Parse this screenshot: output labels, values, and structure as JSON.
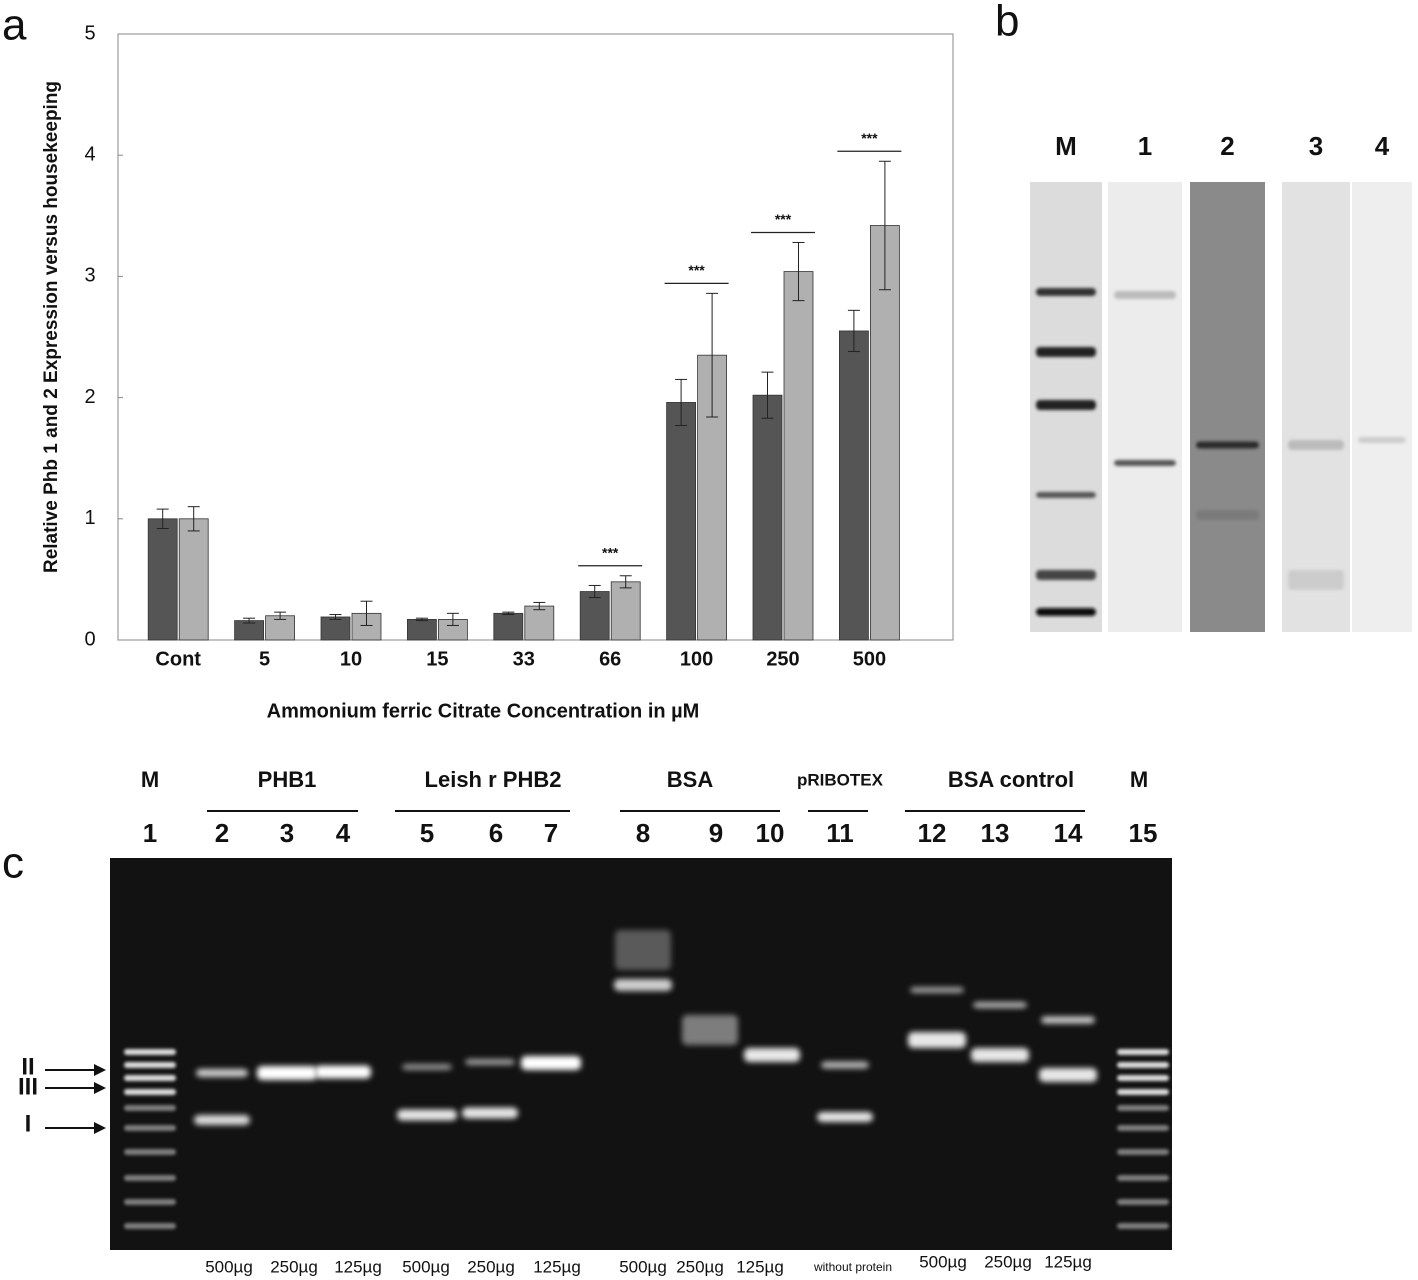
{
  "chart_data": {
    "type": "bar",
    "panel_label": "a",
    "y_label": "Relative Phb  1 and 2 Expression versus housekeeping",
    "x_label": "Ammonium ferric Citrate Concentration  in µM",
    "categories": [
      "Cont",
      "5",
      "10",
      "15",
      "33",
      "66",
      "100",
      "250",
      "500"
    ],
    "series": [
      {
        "color": "#555555",
        "values": [
          1.0,
          0.16,
          0.19,
          0.17,
          0.22,
          0.4,
          1.96,
          2.02,
          2.55
        ],
        "errors": [
          0.08,
          0.02,
          0.02,
          0.01,
          0.01,
          0.05,
          0.19,
          0.19,
          0.17
        ]
      },
      {
        "color": "#b0b0b0",
        "values": [
          1.0,
          0.2,
          0.22,
          0.17,
          0.28,
          0.48,
          2.35,
          3.04,
          3.42
        ],
        "errors": [
          0.1,
          0.03,
          0.1,
          0.05,
          0.03,
          0.05,
          0.51,
          0.24,
          0.53
        ]
      }
    ],
    "ylim": [
      0,
      5
    ],
    "yticks": [
      0,
      1,
      2,
      3,
      4,
      5
    ],
    "grid": false,
    "significance": [
      {
        "category": "66",
        "label": "***"
      },
      {
        "category": "100",
        "label": "***"
      },
      {
        "category": "250",
        "label": "***"
      },
      {
        "category": "500",
        "label": "***"
      }
    ]
  },
  "panel_b": {
    "label": "b",
    "lanes": [
      "M",
      "1",
      "2",
      "3",
      "4"
    ]
  },
  "panel_c": {
    "label": "c",
    "groups": [
      "M",
      "PHB1",
      "Leish r PHB2",
      "BSA",
      "pRIBOTEX",
      "BSA control",
      "M"
    ],
    "lanes": [
      "1",
      "2",
      "3",
      "4",
      "5",
      "6",
      "7",
      "8",
      "9",
      "10",
      "11",
      "12",
      "13",
      "14",
      "15"
    ],
    "doses": [
      "500µg",
      "250µg",
      "125µg",
      "500µg",
      "250µg",
      "125µg",
      "500µg",
      "250µg",
      "125µg",
      "without protein",
      "500µg",
      "250µg",
      "125µg"
    ],
    "forms": [
      "II",
      "III",
      "I"
    ]
  }
}
